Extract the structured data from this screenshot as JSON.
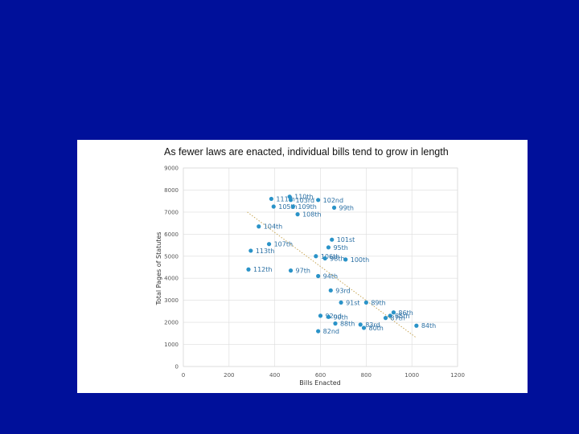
{
  "slide": {
    "background": "#00109a"
  },
  "chart_data": {
    "type": "scatter",
    "title": "As fewer laws are enacted, individual bills tend to grow in length",
    "xlabel": "Bills Enacted",
    "ylabel": "Total Pages of Statutes",
    "xlim": [
      0,
      1200
    ],
    "ylim": [
      0,
      9000
    ],
    "xticks": [
      0,
      200,
      400,
      600,
      800,
      1000,
      1200
    ],
    "yticks": [
      0,
      1000,
      2000,
      3000,
      4000,
      5000,
      6000,
      7000,
      8000,
      9000
    ],
    "grid": true,
    "trendline": {
      "style": "dotted",
      "color": "#c9a85a",
      "from": [
        280,
        7000
      ],
      "to": [
        1020,
        1300
      ]
    },
    "point_color": "#2a93c8",
    "points": [
      {
        "label": "111th",
        "x": 385,
        "y": 7600
      },
      {
        "label": "110th",
        "x": 465,
        "y": 7700
      },
      {
        "label": "103rd",
        "x": 470,
        "y": 7550
      },
      {
        "label": "102nd",
        "x": 590,
        "y": 7550
      },
      {
        "label": "105th",
        "x": 395,
        "y": 7250
      },
      {
        "label": "109th",
        "x": 480,
        "y": 7250
      },
      {
        "label": "99th",
        "x": 660,
        "y": 7200
      },
      {
        "label": "108th",
        "x": 500,
        "y": 6900
      },
      {
        "label": "104th",
        "x": 330,
        "y": 6350
      },
      {
        "label": "101st",
        "x": 650,
        "y": 5750
      },
      {
        "label": "107th",
        "x": 375,
        "y": 5550
      },
      {
        "label": "95th",
        "x": 635,
        "y": 5400
      },
      {
        "label": "113th",
        "x": 295,
        "y": 5250
      },
      {
        "label": "106th",
        "x": 580,
        "y": 5000
      },
      {
        "label": "98th",
        "x": 620,
        "y": 4900
      },
      {
        "label": "100th",
        "x": 710,
        "y": 4850
      },
      {
        "label": "112th",
        "x": 285,
        "y": 4400
      },
      {
        "label": "97th",
        "x": 470,
        "y": 4350
      },
      {
        "label": "94th",
        "x": 590,
        "y": 4100
      },
      {
        "label": "93rd",
        "x": 645,
        "y": 3450
      },
      {
        "label": "91st",
        "x": 690,
        "y": 2900
      },
      {
        "label": "89th",
        "x": 800,
        "y": 2900
      },
      {
        "label": "86th",
        "x": 920,
        "y": 2450
      },
      {
        "label": "85th",
        "x": 905,
        "y": 2300
      },
      {
        "label": "87th",
        "x": 885,
        "y": 2200
      },
      {
        "label": "92nd",
        "x": 600,
        "y": 2300
      },
      {
        "label": "90th",
        "x": 635,
        "y": 2250
      },
      {
        "label": "88th",
        "x": 665,
        "y": 1950
      },
      {
        "label": "83rd",
        "x": 775,
        "y": 1900
      },
      {
        "label": "80th",
        "x": 790,
        "y": 1750
      },
      {
        "label": "84th",
        "x": 1020,
        "y": 1850
      },
      {
        "label": "82nd",
        "x": 590,
        "y": 1600
      }
    ]
  }
}
